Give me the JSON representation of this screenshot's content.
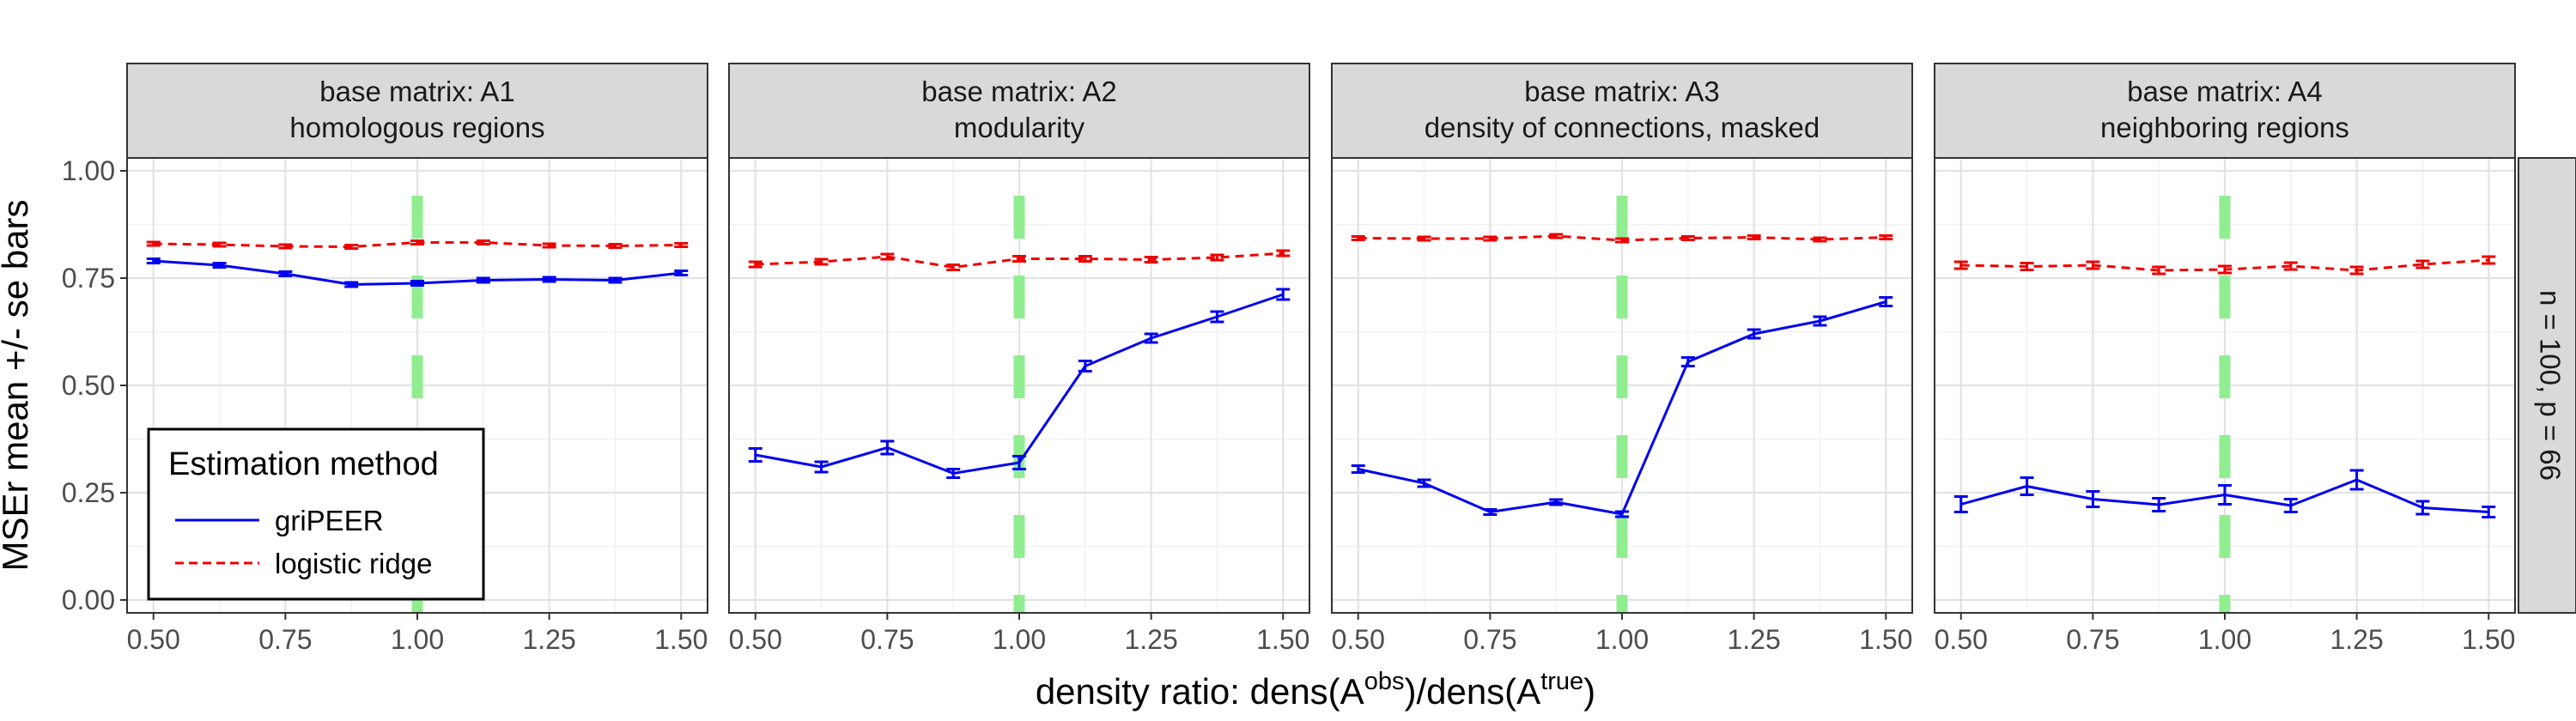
{
  "chart_data": {
    "type": "line",
    "ylabel": "MSEr mean +/- se bars",
    "xlabel": {
      "prefix": "density ratio: dens(A",
      "sup1": "obs",
      "middle": ")/dens(A",
      "sup2": "true",
      "suffix": ")"
    },
    "row_strip": "n = 100, p = 66",
    "xlim": [
      0.45,
      1.55
    ],
    "ylim": [
      -0.03,
      1.03
    ],
    "x_ticks": [
      0.5,
      0.75,
      1.0,
      1.25,
      1.5
    ],
    "x_tick_labels": [
      "0.50",
      "0.75",
      "1.00",
      "1.25",
      "1.50"
    ],
    "y_ticks": [
      0,
      0.25,
      0.5,
      0.75,
      1.0
    ],
    "y_tick_labels": [
      "0.00",
      "0.25",
      "0.50",
      "0.75",
      "1.00"
    ],
    "grid": true,
    "reference_line": {
      "x": 1.0,
      "color": "#90ee90",
      "style": "dashed"
    },
    "legend": {
      "title": "Estimation method",
      "position": "bottom-left",
      "entries": [
        {
          "label": "griPEER",
          "color": "#0000ee",
          "style": "solid"
        },
        {
          "label": "logistic ridge",
          "color": "#ee0000",
          "style": "dashed"
        }
      ]
    },
    "x": [
      0.5,
      0.625,
      0.75,
      0.875,
      1.0,
      1.125,
      1.25,
      1.375,
      1.5
    ],
    "panels": [
      {
        "title_line1": "base matrix: A1",
        "title_line2": "homologous regions",
        "series": [
          {
            "name": "griPEER",
            "color": "#0000ee",
            "dash": false,
            "values": [
              0.79,
              0.78,
              0.76,
              0.735,
              0.738,
              0.745,
              0.747,
              0.745,
              0.762
            ],
            "se": [
              0.005,
              0.005,
              0.005,
              0.005,
              0.005,
              0.005,
              0.005,
              0.005,
              0.005
            ]
          },
          {
            "name": "logistic ridge",
            "color": "#ee0000",
            "dash": true,
            "values": [
              0.83,
              0.828,
              0.824,
              0.823,
              0.833,
              0.833,
              0.826,
              0.825,
              0.827
            ],
            "se": [
              0.004,
              0.004,
              0.004,
              0.004,
              0.004,
              0.004,
              0.004,
              0.004,
              0.004
            ]
          }
        ]
      },
      {
        "title_line1": "base matrix: A2",
        "title_line2": "modularity",
        "series": [
          {
            "name": "griPEER",
            "color": "#0000ee",
            "dash": false,
            "values": [
              0.338,
              0.31,
              0.355,
              0.295,
              0.32,
              0.545,
              0.61,
              0.66,
              0.712
            ],
            "se": [
              0.015,
              0.012,
              0.015,
              0.01,
              0.015,
              0.012,
              0.01,
              0.012,
              0.012
            ]
          },
          {
            "name": "logistic ridge",
            "color": "#ee0000",
            "dash": true,
            "values": [
              0.782,
              0.788,
              0.8,
              0.775,
              0.795,
              0.795,
              0.793,
              0.798,
              0.808
            ],
            "se": [
              0.006,
              0.006,
              0.006,
              0.006,
              0.006,
              0.006,
              0.006,
              0.006,
              0.006
            ]
          }
        ]
      },
      {
        "title_line1": "base matrix: A3",
        "title_line2": "density of connections, masked",
        "series": [
          {
            "name": "griPEER",
            "color": "#0000ee",
            "dash": false,
            "values": [
              0.305,
              0.272,
              0.205,
              0.228,
              0.2,
              0.555,
              0.62,
              0.65,
              0.695
            ],
            "se": [
              0.008,
              0.008,
              0.006,
              0.006,
              0.006,
              0.01,
              0.01,
              0.01,
              0.01
            ]
          },
          {
            "name": "logistic ridge",
            "color": "#ee0000",
            "dash": true,
            "values": [
              0.843,
              0.842,
              0.842,
              0.848,
              0.838,
              0.843,
              0.845,
              0.84,
              0.845
            ],
            "se": [
              0.004,
              0.004,
              0.004,
              0.004,
              0.004,
              0.004,
              0.004,
              0.004,
              0.004
            ]
          }
        ]
      },
      {
        "title_line1": "base matrix: A4",
        "title_line2": "neighboring regions",
        "series": [
          {
            "name": "griPEER",
            "color": "#0000ee",
            "dash": false,
            "values": [
              0.223,
              0.265,
              0.235,
              0.222,
              0.245,
              0.22,
              0.28,
              0.215,
              0.205
            ],
            "se": [
              0.018,
              0.02,
              0.018,
              0.015,
              0.022,
              0.015,
              0.022,
              0.015,
              0.012
            ]
          },
          {
            "name": "logistic ridge",
            "color": "#ee0000",
            "dash": true,
            "values": [
              0.78,
              0.777,
              0.78,
              0.768,
              0.77,
              0.778,
              0.768,
              0.782,
              0.792
            ],
            "se": [
              0.008,
              0.008,
              0.008,
              0.008,
              0.008,
              0.008,
              0.008,
              0.008,
              0.008
            ]
          }
        ]
      }
    ]
  }
}
